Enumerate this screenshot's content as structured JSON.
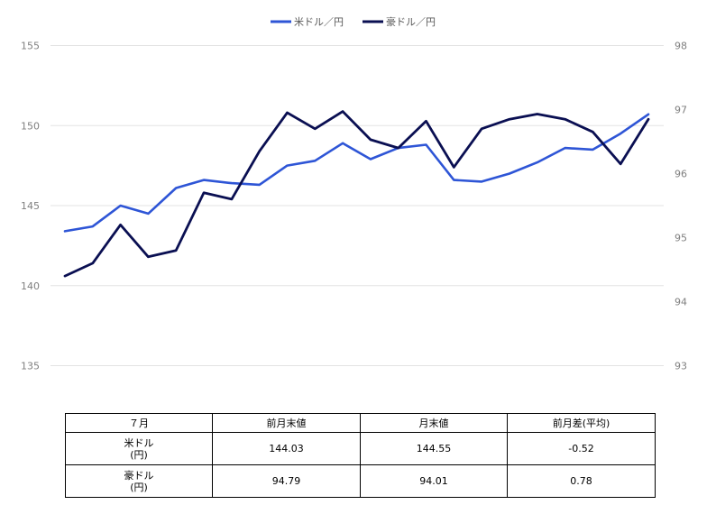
{
  "chart_data": {
    "type": "line",
    "legend_position": "top-center",
    "grid": true,
    "y_left_range": [
      132.5,
      155
    ],
    "y_right_range": [
      92.6,
      98
    ],
    "y_left_ticks": [
      "155",
      "150",
      "145",
      "140",
      "135"
    ],
    "y_right_ticks": [
      "98",
      "97",
      "96",
      "95",
      "94",
      "93"
    ],
    "series": [
      {
        "name": "米ドル／円",
        "axis": "left",
        "color": "#2e55d6",
        "values": [
          143.4,
          143.7,
          145.0,
          144.5,
          146.1,
          146.6,
          146.4,
          146.3,
          147.5,
          147.8,
          148.9,
          147.9,
          148.6,
          148.8,
          146.6,
          146.5,
          147.0,
          147.7,
          148.6,
          148.5,
          149.5,
          150.7
        ]
      },
      {
        "name": "豪ドル／円",
        "axis": "right",
        "color": "#0a0f52",
        "values": [
          94.4,
          94.6,
          95.2,
          94.7,
          94.8,
          95.7,
          95.6,
          96.35,
          96.95,
          96.7,
          96.97,
          96.53,
          96.4,
          96.82,
          96.1,
          96.7,
          96.85,
          96.93,
          96.85,
          96.65,
          96.15,
          96.85
        ]
      }
    ]
  },
  "table": {
    "headers": [
      "７月",
      "前月末値",
      "月末値",
      "前月差(平均)"
    ],
    "rows": [
      {
        "label_line1": "米ドル",
        "label_line2": "(円)",
        "values": [
          "144.03",
          "144.55",
          "-0.52"
        ]
      },
      {
        "label_line1": "豪ドル",
        "label_line2": "(円)",
        "values": [
          "94.79",
          "94.01",
          "0.78"
        ]
      }
    ]
  }
}
